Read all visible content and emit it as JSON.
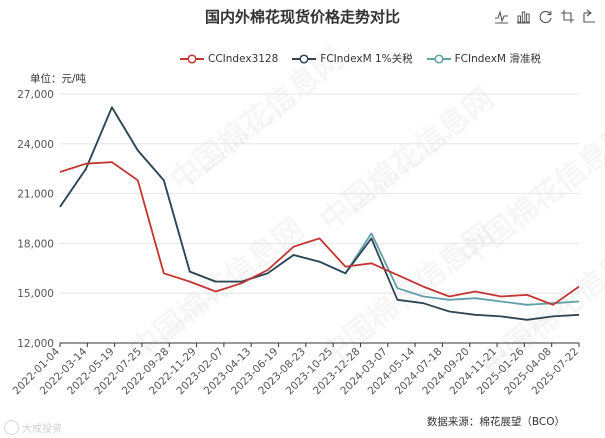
{
  "title": "国内外棉花现货价格走势对比",
  "unit_label": "单位：元/吨",
  "source_text": "数据来源：棉花展望（BCO）",
  "corner_logo_text": "大成投资",
  "watermark_text": "中国棉花信息网",
  "watermark_url": "www.cottonchina.org.cn",
  "toolbox": [
    "line-chart-icon",
    "bar-chart-icon",
    "refresh-icon",
    "area-zoom-icon",
    "zoom-reset-icon"
  ],
  "chart_data": {
    "type": "line",
    "title": "国内外棉花现货价格走势对比",
    "ylabel": "单位：元/吨",
    "ylim": [
      12000,
      27000
    ],
    "yticks": [
      "12,000",
      "15,000",
      "18,000",
      "21,000",
      "24,000",
      "27,000"
    ],
    "grid": true,
    "legend_position": "top",
    "x": [
      "2022-01-04",
      "2022-03-14",
      "2022-05-19",
      "2022-07-25",
      "2022-09-28",
      "2022-11-29",
      "2023-02-07",
      "2023-04-13",
      "2023-06-19",
      "2023-08-23",
      "2023-10-25",
      "2023-12-28",
      "2024-03-07",
      "2024-05-14",
      "2024-07-18",
      "2024-09-20",
      "2024-11-21",
      "2025-01-26",
      "2025-04-08",
      "2025-06-10",
      "2025-07-22"
    ],
    "xticks": [
      "2022-01-04",
      "2022-03-14",
      "2022-05-19",
      "2022-07-25",
      "2022-09-28",
      "2022-11-29",
      "2023-02-07",
      "2023-04-13",
      "2023-06-19",
      "2023-08-23",
      "2023-10-25",
      "2023-12-28",
      "2024-03-07",
      "2024-05-14",
      "2024-07-18",
      "2024-09-20",
      "2024-11-21",
      "2025-01-26",
      "2025-04-08",
      "2025-07-22"
    ],
    "series": [
      {
        "name": "CCIndex3128",
        "color": "#c23531",
        "values": [
          22300,
          22800,
          22900,
          21800,
          16200,
          15700,
          15100,
          15600,
          16400,
          17800,
          18300,
          16600,
          16800,
          16100,
          15400,
          14800,
          15100,
          14800,
          14900,
          14300,
          15400
        ]
      },
      {
        "name": "FCIndexM 1%关税",
        "color": "#2f4554",
        "values": [
          20200,
          22500,
          26200,
          23600,
          21800,
          16300,
          15700,
          15700,
          16200,
          17300,
          16900,
          16200,
          18300,
          14600,
          14400,
          13900,
          13700,
          13600,
          13400,
          13600,
          13700
        ]
      },
      {
        "name": "FCIndexM 滑准税",
        "color": "#61a0a8",
        "values": [
          20200,
          22500,
          26200,
          23600,
          21800,
          16300,
          15700,
          15700,
          16200,
          17300,
          16900,
          16200,
          18600,
          15300,
          14800,
          14600,
          14700,
          14500,
          14300,
          14400,
          14500
        ]
      }
    ]
  }
}
